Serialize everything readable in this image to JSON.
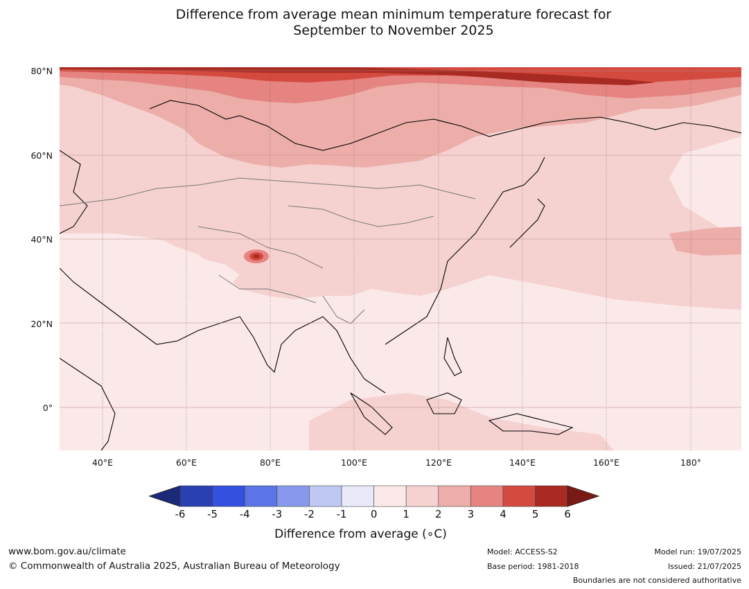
{
  "title_line1": "Difference from average mean minimum temperature forecast for",
  "title_line2": "September to November 2025",
  "lat_labels": [
    "80°N",
    "60°N",
    "40°N",
    "20°N",
    "0°"
  ],
  "lon_labels": [
    "40°E",
    "60°E",
    "80°E",
    "100°E",
    "120°E",
    "140°E",
    "160°E",
    "180°"
  ],
  "colorbar": {
    "ticks": [
      "-6",
      "-5",
      "-4",
      "-3",
      "-2",
      "-1",
      "0",
      "1",
      "2",
      "3",
      "4",
      "5",
      "6"
    ],
    "colors": [
      "#1a2a78",
      "#2a3fb0",
      "#3350de",
      "#5b74e6",
      "#8898ec",
      "#bfc8f3",
      "#e8eaf9",
      "#fbe9e9",
      "#f5d2d0",
      "#edaeaa",
      "#e58480",
      "#d44a3f",
      "#a82a22",
      "#7a1a15"
    ],
    "label": "Difference from average (∘C)"
  },
  "footer": {
    "website": "www.bom.gov.au/climate",
    "copyright": "© Commonwealth of Australia 2025, Australian Bureau of Meteorology",
    "model": "Model: ACCESS-S2",
    "base_period": "Base period: 1981-2018",
    "model_run": "Model run: 19/07/2025",
    "issued": "Issued: 21/07/2025",
    "disclaimer": "Boundaries are not considered authoritative"
  }
}
